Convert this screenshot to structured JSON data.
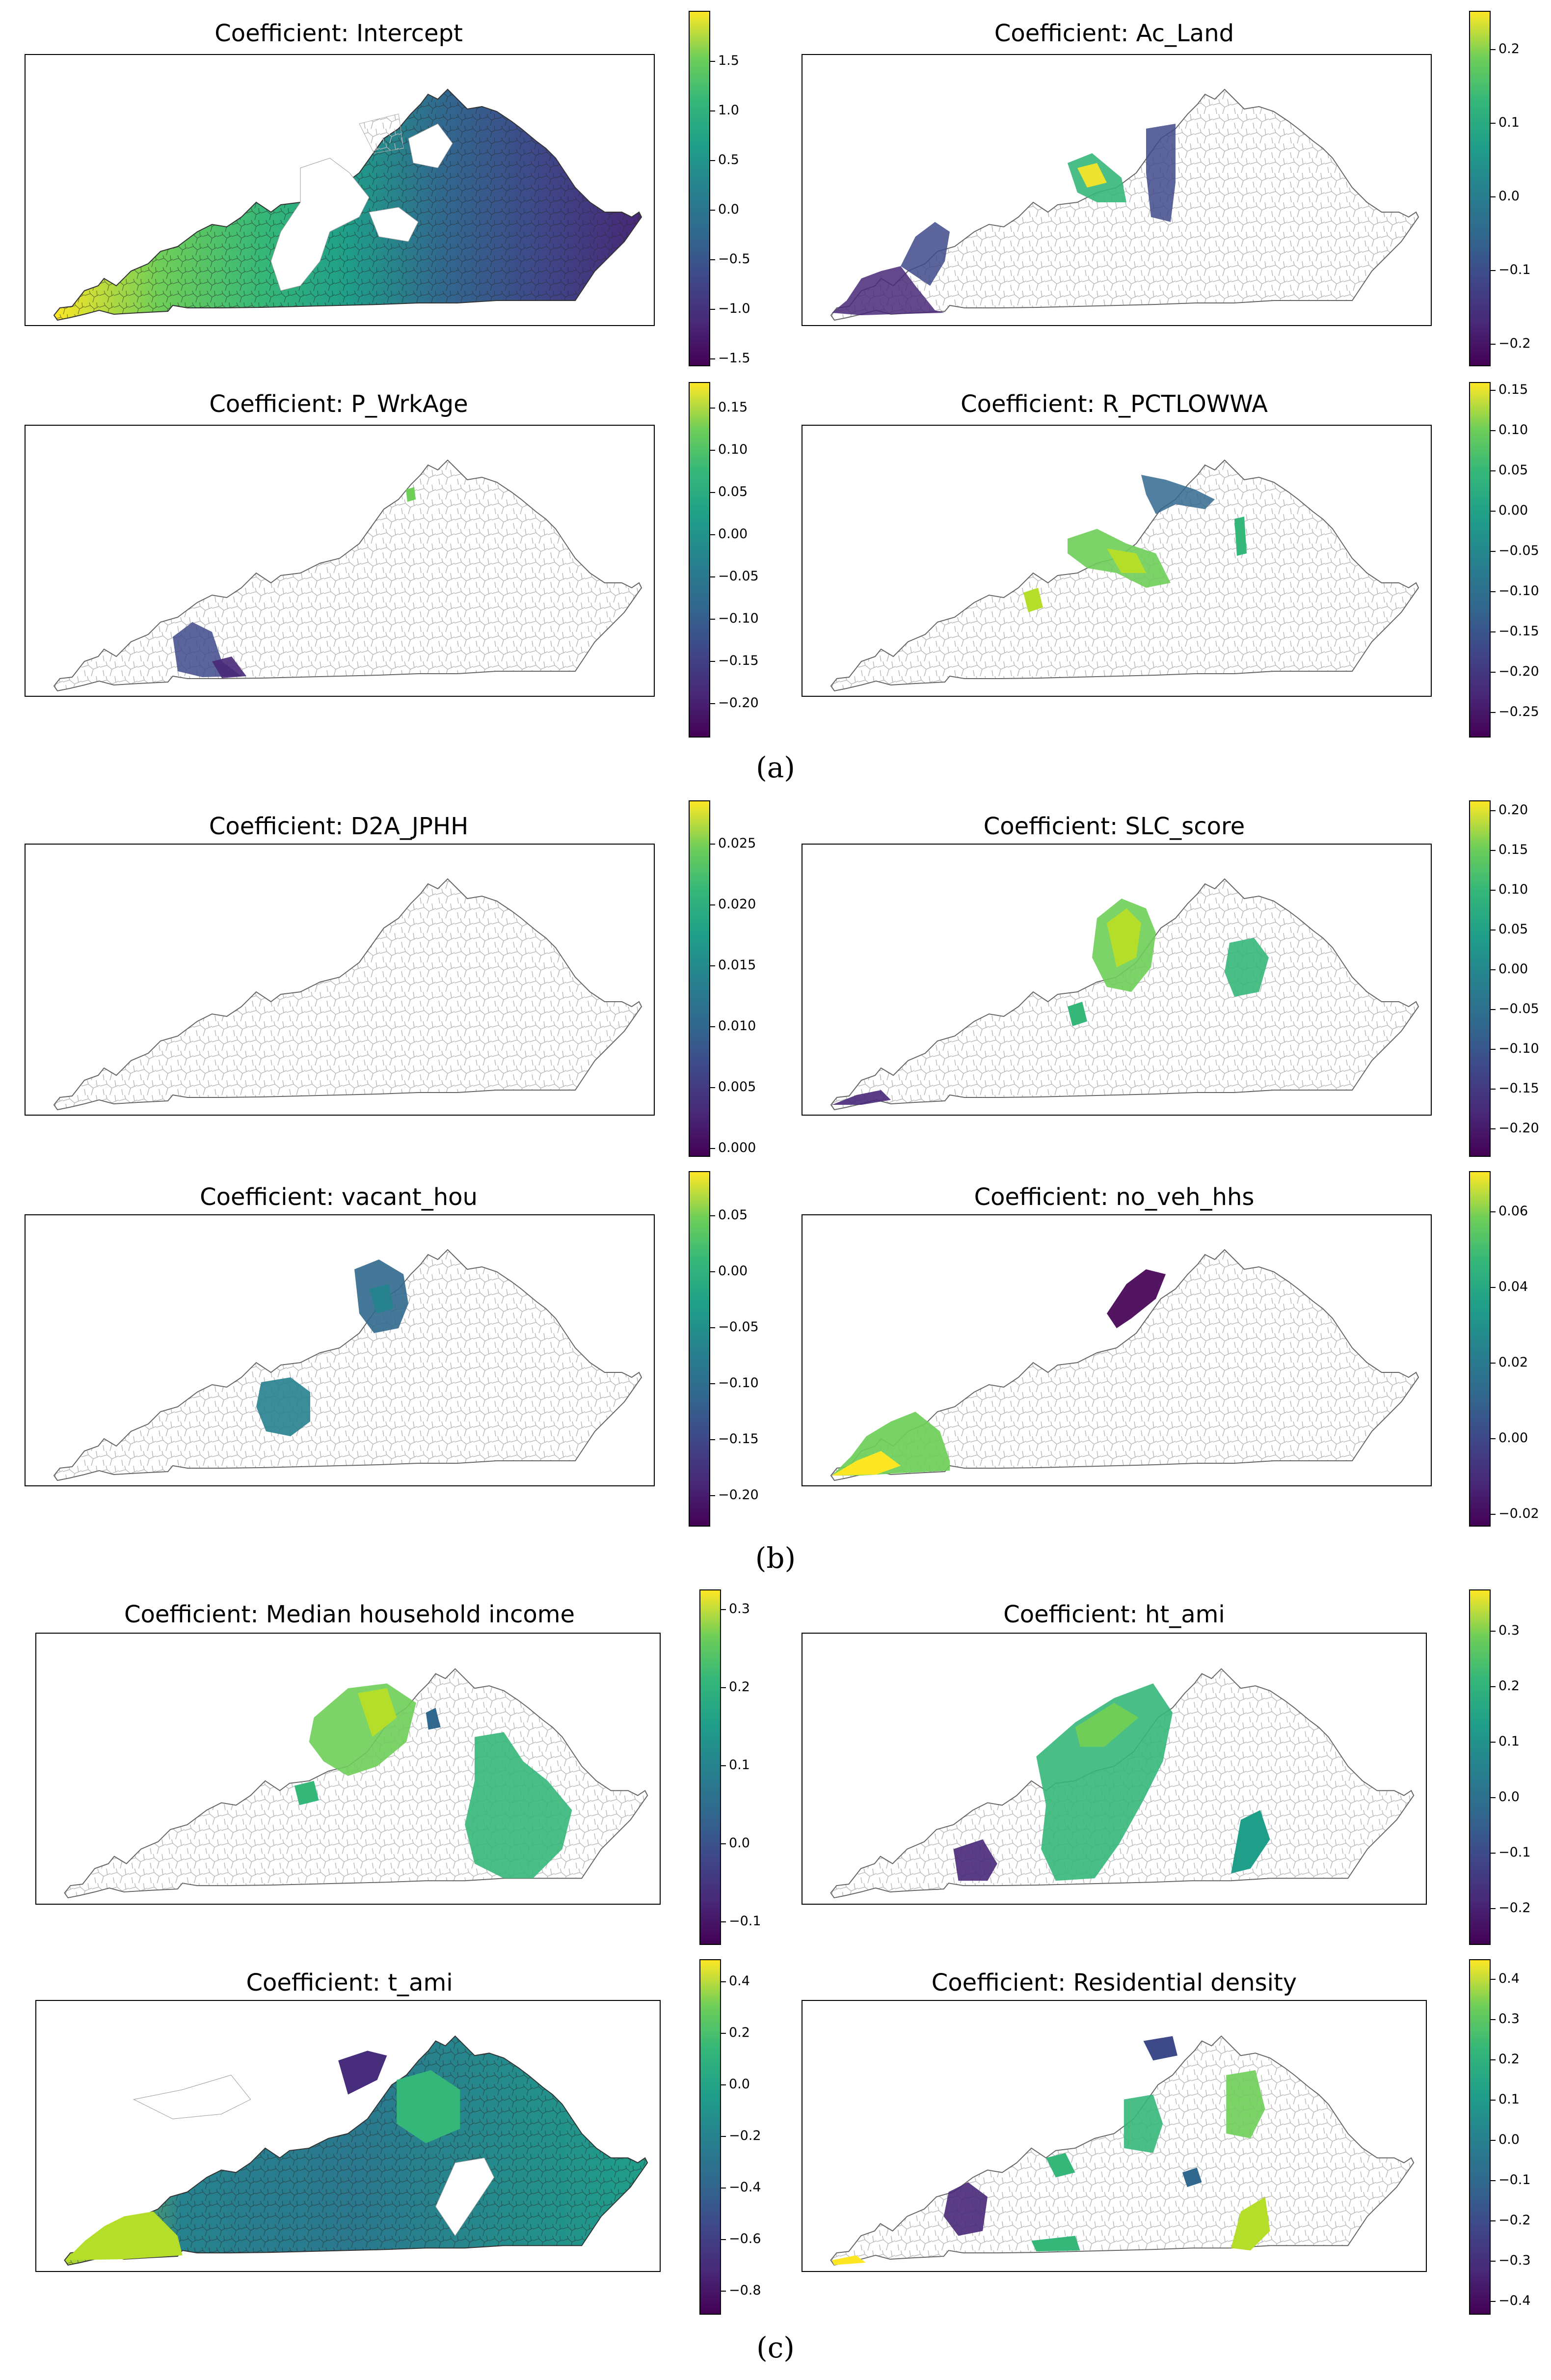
{
  "figure": {
    "label_a": "(a)",
    "label_b": "(b)",
    "label_c": "(c)"
  },
  "colors": {
    "viridis": [
      "#440154",
      "#482878",
      "#3e4989",
      "#31688e",
      "#26828e",
      "#1f9e89",
      "#35b779",
      "#6ece58",
      "#fde725"
    ],
    "outline": "#000000",
    "tract_line": "#bbbbbb"
  },
  "panels": [
    {
      "title": "Coefficient: Intercept",
      "ticks": [
        "1.5",
        "1.0",
        "0.5",
        "0.0",
        "−0.5",
        "−1.0",
        "−1.5"
      ],
      "coverage": "full",
      "range": [
        -1.6,
        1.95
      ]
    },
    {
      "title": "Coefficient: Ac_Land",
      "ticks": [
        "0.2",
        "0.1",
        "0.0",
        "−0.1",
        "−0.2"
      ],
      "coverage": "partial",
      "range": [
        -0.23,
        0.25
      ]
    },
    {
      "title": "Coefficient: P_WrkAge",
      "ticks": [
        "0.15",
        "0.10",
        "0.05",
        "0.00",
        "−0.05",
        "−0.10",
        "−0.15",
        "−0.20"
      ],
      "coverage": "partial",
      "range": [
        -0.24,
        0.18
      ]
    },
    {
      "title": "Coefficient: R_PCTLOWWA",
      "ticks": [
        "0.15",
        "0.10",
        "0.05",
        "0.00",
        "−0.05",
        "−0.10",
        "−0.15",
        "−0.20",
        "−0.25"
      ],
      "coverage": "partial",
      "range": [
        -0.28,
        0.16
      ]
    },
    {
      "title": "Coefficient: D2A_JPHH",
      "ticks": [
        "0.025",
        "0.020",
        "0.015",
        "0.010",
        "0.005",
        "0.000"
      ],
      "coverage": "none",
      "range": [
        -0.001,
        0.028
      ]
    },
    {
      "title": "Coefficient: SLC_score",
      "ticks": [
        "0.20",
        "0.15",
        "0.10",
        "0.05",
        "0.00",
        "−0.05",
        "−0.10",
        "−0.15",
        "−0.20"
      ],
      "coverage": "partial",
      "range": [
        -0.23,
        0.21
      ]
    },
    {
      "title": "Coefficient: vacant_hou",
      "ticks": [
        "0.05",
        "0.00",
        "−0.05",
        "−0.10",
        "−0.15",
        "−0.20"
      ],
      "coverage": "partial",
      "range": [
        -0.22,
        0.08
      ]
    },
    {
      "title": "Coefficient: no_veh_hhs",
      "ticks": [
        "0.06",
        "0.04",
        "0.02",
        "0.00",
        "−0.02"
      ],
      "coverage": "partial",
      "range": [
        -0.025,
        0.07
      ]
    },
    {
      "title": "Coefficient: Median household income",
      "ticks": [
        "0.3",
        "0.2",
        "0.1",
        "0.0",
        "−0.1"
      ],
      "coverage": "partial",
      "range": [
        -0.13,
        0.32
      ]
    },
    {
      "title": "Coefficient: ht_ami",
      "ticks": [
        "0.3",
        "0.2",
        "0.1",
        "0.0",
        "−0.1",
        "−0.2"
      ],
      "coverage": "partial",
      "range": [
        -0.27,
        0.37
      ]
    },
    {
      "title": "Coefficient: t_ami",
      "ticks": [
        "0.4",
        "0.2",
        "0.0",
        "−0.2",
        "−0.4",
        "−0.6",
        "−0.8"
      ],
      "coverage": "mostly",
      "range": [
        -0.92,
        0.45
      ]
    },
    {
      "title": "Coefficient: Residential density",
      "ticks": [
        "0.4",
        "0.3",
        "0.2",
        "0.1",
        "0.0",
        "−0.1",
        "−0.2",
        "−0.3",
        "−0.4"
      ],
      "coverage": "partial",
      "range": [
        -0.45,
        0.43
      ]
    }
  ]
}
